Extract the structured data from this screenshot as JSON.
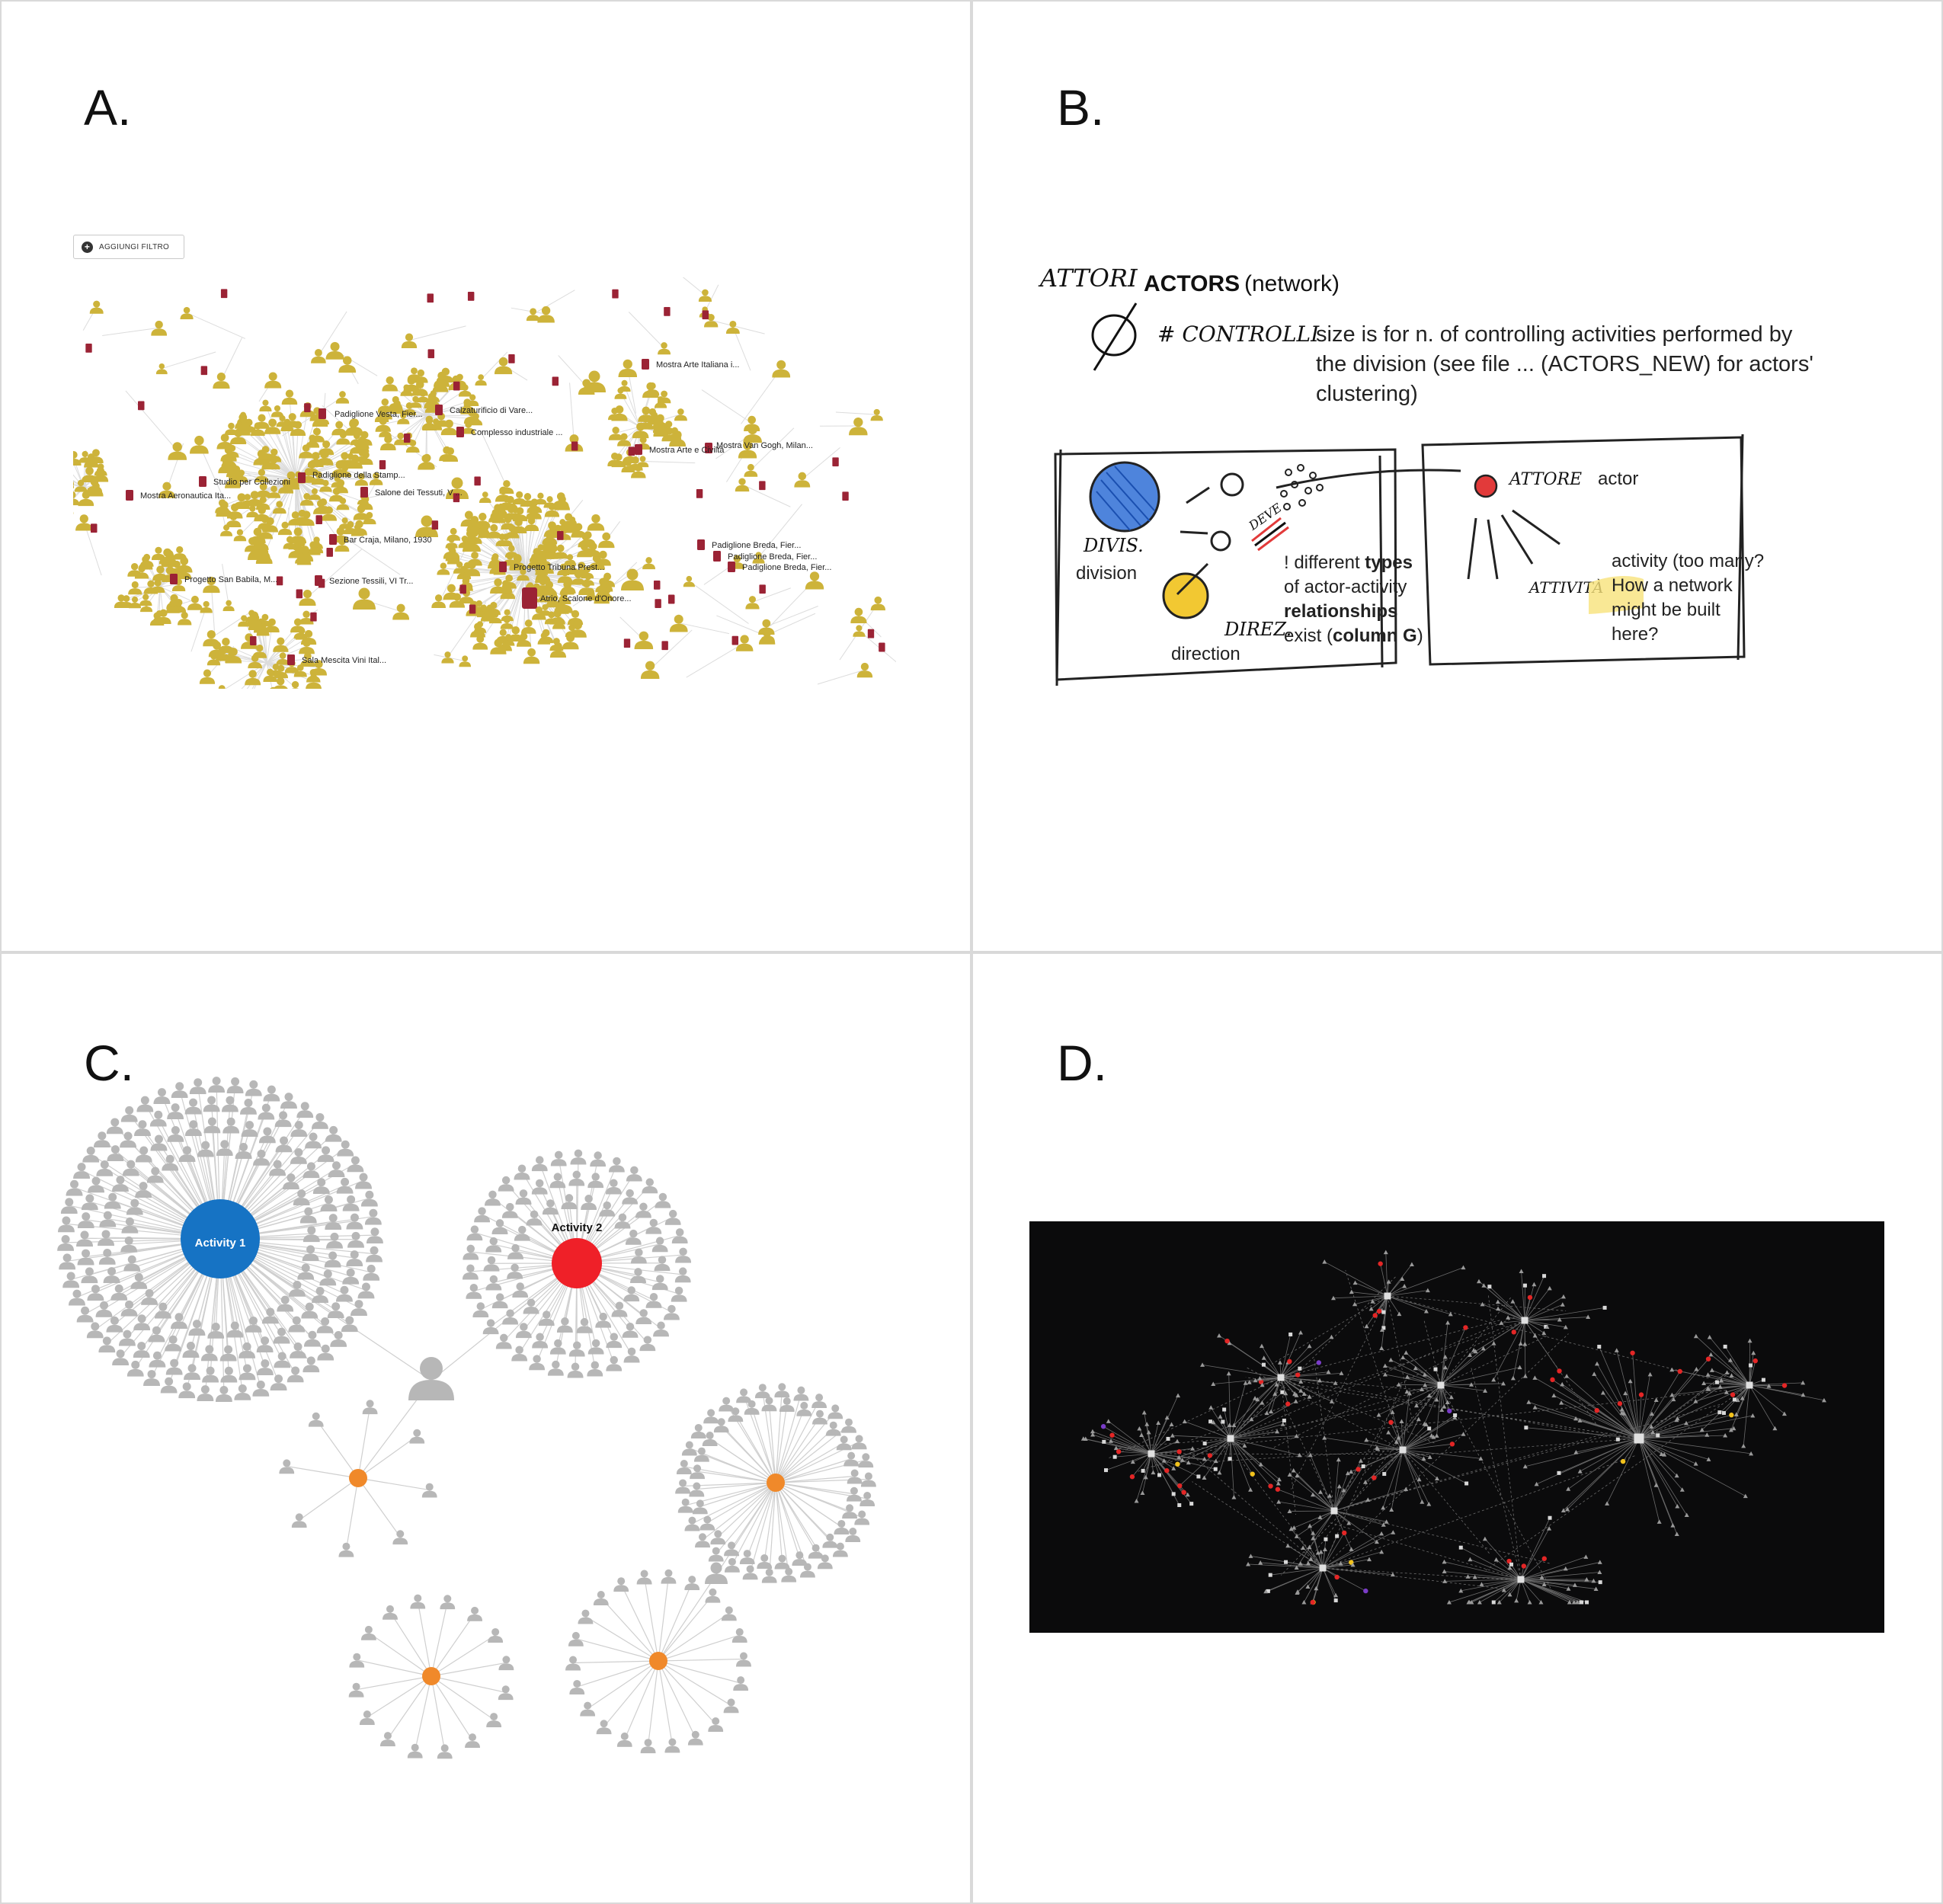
{
  "panels": {
    "a": {
      "letter": "A.",
      "filter_button": "AGGIUNGI FILTRO",
      "node_labels": [
        "Padiglione Vesta, Fier...",
        "Calzaturificio di Vare...",
        "Complesso industriale ...",
        "Mostra Arte Italiana i...",
        "Mostra Arte e Civiltà",
        "Mostra Van Gogh, Milan...",
        "Studio per Collezioni",
        "Padiglione della Stamp...",
        "Mostra Aeronautica Ita...",
        "Salone dei Tessuti, V ...",
        "Bar Craja, Milano, 1930",
        "Padiglione Breda, Fier...",
        "Padiglione Breda, Fier...",
        "Padiglione Breda, Fier...",
        "Progetto San Babila, M...",
        "Sezione Tessili, VI Tr...",
        "Progetto Tribuna Prest...",
        "Atrio, Scalone d'Onore...",
        "Sala Mescita Vini Ital..."
      ],
      "colors": {
        "actor": "#cdb33a",
        "activity": "#9b2335",
        "edge": "#d9d9d9"
      }
    },
    "b": {
      "letter": "B.",
      "hand_attori": "ATTORI",
      "title_bold": "ACTORS",
      "title_rest": "(network)",
      "hand_controlli": "# CONTROLLI",
      "size_note": [
        "size is for n. of controlling activities performed by",
        "the division (see file ... (ACTORS_NEW) for actors'",
        "clustering)"
      ],
      "hand_divis": "DIVIS.",
      "division": "division",
      "hand_direz": "DIREZ.",
      "direction": "direction",
      "hand_deve": "DEVE",
      "types_note": {
        "l1_pre": "! different ",
        "l1_bold": "types",
        "l2": "of actor-activity",
        "l3_bold": "relationships",
        "l4_pre": "exist (",
        "l4_bold": "column G",
        "l4_post": ")"
      },
      "hand_attore": "ATTORE",
      "actor": "actor",
      "hand_attivita": "ATTIVITÀ",
      "activity_note": [
        "activity (too many?",
        "How a network",
        "might be built",
        "here?"
      ],
      "colors": {
        "division": "#2f6fd6",
        "direction": "#f2c832",
        "actor": "#e23a3a",
        "highlight": "#f7e27a"
      }
    },
    "c": {
      "letter": "C.",
      "activity1": "Activity 1",
      "activity2": "Activity 2",
      "colors": {
        "activity1": "#1673c4",
        "activity2": "#ef2028",
        "activity": "#f0892a",
        "actor": "#b7b7b7",
        "edge": "#cfcfcf"
      }
    },
    "d": {
      "letter": "D.",
      "colors": {
        "background": "#0b0b0c",
        "node": "#bdbdbd",
        "hub": "#e0e0e0",
        "red": "#e32626",
        "yellow": "#f2c21c",
        "purple": "#7a3cc8",
        "edge": "#8a8a8a"
      }
    }
  }
}
